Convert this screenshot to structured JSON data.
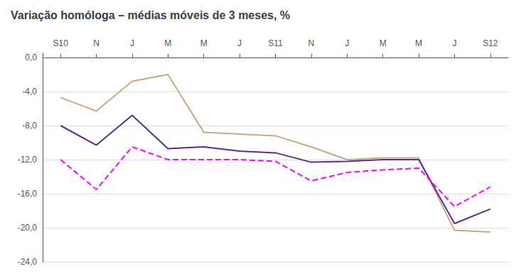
{
  "chart_data": {
    "type": "line",
    "title": "Variação homóloga – médias móveis de 3 meses, %",
    "categories": [
      "S10",
      "N",
      "J",
      "M",
      "M",
      "J",
      "S11",
      "N",
      "J",
      "M",
      "M",
      "J",
      "S12"
    ],
    "series": [
      {
        "color": "#c8a882",
        "line_style": "solid",
        "values": [
          -4.7,
          -6.3,
          -2.8,
          -2.0,
          -8.8,
          -9.0,
          -9.2,
          -10.5,
          -12.0,
          -11.8,
          -11.8,
          -20.3,
          -20.5
        ]
      },
      {
        "color": "#5b2d8e",
        "line_style": "solid",
        "values": [
          -8.0,
          -10.3,
          -6.8,
          -10.7,
          -10.5,
          -11.0,
          -11.2,
          -12.3,
          -12.2,
          -12.0,
          -12.0,
          -19.5,
          -17.8
        ]
      },
      {
        "color": "#ff00ff",
        "line_style": "dashed",
        "values": [
          -12.0,
          -15.5,
          -10.5,
          -12.0,
          -12.0,
          -12.0,
          -12.2,
          -14.5,
          -13.5,
          -13.2,
          -13.0,
          -17.5,
          -15.2
        ]
      }
    ],
    "ylim": [
      -24,
      0.5
    ],
    "yticks": [
      {
        "value": 0.0,
        "label": "0,0"
      },
      {
        "value": -4.0,
        "label": "-4,0"
      },
      {
        "value": -8.0,
        "label": "-8,0"
      },
      {
        "value": -12.0,
        "label": "-12,0"
      },
      {
        "value": -16.0,
        "label": "-16,0"
      },
      {
        "value": -20.0,
        "label": "-20,0"
      },
      {
        "value": -24.0,
        "label": "-24,0"
      }
    ],
    "grid": true
  }
}
